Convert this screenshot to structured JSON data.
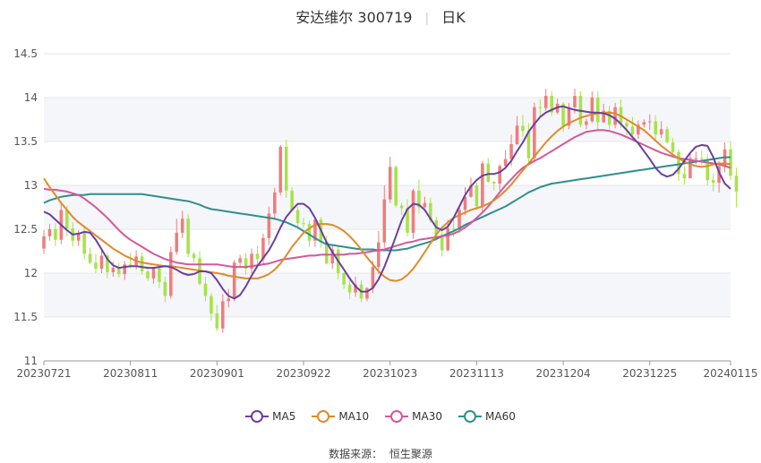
{
  "header": {
    "name_code": "安达维尔 300719",
    "period": "日K"
  },
  "source": {
    "label": "数据来源：",
    "value": "恒生聚源"
  },
  "chart_data": {
    "type": "candlestick",
    "title": "安达维尔 300719 日K",
    "ylim": [
      11,
      14.5
    ],
    "yticks": [
      11,
      11.5,
      12,
      12.5,
      13,
      13.5,
      14,
      14.5
    ],
    "xticks": [
      "20230721",
      "20230811",
      "20230901",
      "20230922",
      "20231023",
      "20231113",
      "20231204",
      "20231225",
      "20240115"
    ],
    "n": 120,
    "x_tick_indices": [
      0,
      15,
      30,
      45,
      60,
      75,
      90,
      105,
      119
    ],
    "colors": {
      "up": "#f07c7c",
      "down": "#a6e34a",
      "grid": "#e6e6e6",
      "band": "#f5f6fa",
      "axis": "#999999"
    },
    "candles": [
      [
        12.28,
        12.42,
        12.49,
        12.22
      ],
      [
        12.42,
        12.5,
        12.56,
        12.37
      ],
      [
        12.5,
        12.38,
        12.57,
        12.31
      ],
      [
        12.38,
        12.72,
        12.79,
        12.33
      ],
      [
        12.72,
        12.51,
        12.77,
        12.42
      ],
      [
        12.51,
        12.37,
        12.58,
        12.3
      ],
      [
        12.37,
        12.46,
        12.49,
        12.31
      ],
      [
        12.46,
        12.22,
        12.53,
        12.16
      ],
      [
        12.22,
        12.12,
        12.29,
        12.1
      ],
      [
        12.12,
        12.05,
        12.22,
        12.0
      ],
      [
        12.05,
        12.2,
        12.27,
        12.0
      ],
      [
        12.2,
        12.01,
        12.23,
        11.94
      ],
      [
        12.01,
        12.06,
        12.13,
        11.96
      ],
      [
        12.06,
        11.99,
        12.12,
        11.95
      ],
      [
        11.99,
        12.1,
        12.14,
        11.92
      ],
      [
        12.1,
        12.09,
        12.23,
        12.05
      ],
      [
        12.09,
        12.19,
        12.26,
        12.04
      ],
      [
        12.19,
        12.02,
        12.24,
        11.98
      ],
      [
        12.02,
        11.94,
        12.08,
        11.91
      ],
      [
        11.94,
        12.06,
        12.07,
        11.88
      ],
      [
        12.06,
        11.9,
        12.07,
        11.83
      ],
      [
        11.9,
        11.74,
        11.96,
        11.67
      ],
      [
        11.74,
        12.24,
        12.3,
        11.71
      ],
      [
        12.24,
        12.46,
        12.62,
        12.21
      ],
      [
        12.46,
        12.62,
        12.71,
        12.4
      ],
      [
        12.62,
        12.22,
        12.67,
        12.18
      ],
      [
        12.22,
        12.17,
        12.24,
        12.12
      ],
      [
        12.17,
        11.88,
        12.25,
        11.86
      ],
      [
        11.88,
        11.74,
        11.96,
        11.68
      ],
      [
        11.74,
        11.54,
        11.77,
        11.46
      ],
      [
        11.54,
        11.37,
        11.64,
        11.34
      ],
      [
        11.37,
        11.68,
        11.76,
        11.32
      ],
      [
        11.68,
        11.71,
        11.82,
        11.61
      ],
      [
        11.71,
        12.12,
        12.15,
        11.68
      ],
      [
        12.12,
        12.17,
        12.21,
        12.07
      ],
      [
        12.17,
        12.05,
        12.23,
        11.98
      ],
      [
        12.05,
        12.22,
        12.28,
        12.0
      ],
      [
        12.22,
        12.16,
        12.31,
        12.1
      ],
      [
        12.16,
        12.4,
        12.45,
        12.09
      ],
      [
        12.4,
        12.68,
        12.76,
        12.32
      ],
      [
        12.68,
        12.92,
        12.97,
        12.61
      ],
      [
        12.92,
        13.44,
        13.46,
        12.89
      ],
      [
        13.44,
        12.94,
        13.52,
        12.86
      ],
      [
        12.94,
        12.72,
        12.98,
        12.71
      ],
      [
        12.72,
        12.57,
        12.76,
        12.53
      ],
      [
        12.57,
        12.56,
        12.63,
        12.52
      ],
      [
        12.56,
        12.37,
        12.6,
        12.3
      ],
      [
        12.37,
        12.61,
        12.63,
        12.3
      ],
      [
        12.61,
        12.36,
        12.64,
        12.29
      ],
      [
        12.36,
        12.11,
        12.43,
        12.1
      ],
      [
        12.11,
        12.27,
        12.33,
        12.05
      ],
      [
        12.27,
        12.0,
        12.31,
        11.93
      ],
      [
        12.0,
        11.87,
        12.01,
        11.82
      ],
      [
        11.87,
        11.78,
        11.92,
        11.7
      ],
      [
        11.78,
        11.87,
        11.96,
        11.73
      ],
      [
        11.87,
        11.71,
        11.92,
        11.67
      ],
      [
        11.71,
        11.83,
        11.84,
        11.68
      ],
      [
        11.83,
        12.07,
        12.14,
        11.77
      ],
      [
        12.07,
        12.35,
        12.48,
        11.99
      ],
      [
        12.35,
        12.84,
        13.0,
        12.29
      ],
      [
        12.84,
        13.21,
        13.33,
        12.8
      ],
      [
        13.21,
        12.77,
        13.23,
        12.75
      ],
      [
        12.77,
        12.74,
        12.8,
        12.66
      ],
      [
        12.74,
        12.46,
        12.84,
        12.42
      ],
      [
        12.46,
        12.94,
        12.96,
        12.39
      ],
      [
        12.94,
        12.75,
        13.07,
        12.68
      ],
      [
        12.75,
        12.8,
        12.87,
        12.74
      ],
      [
        12.8,
        12.6,
        12.86,
        12.57
      ],
      [
        12.6,
        12.44,
        12.64,
        12.37
      ],
      [
        12.44,
        12.26,
        12.53,
        12.19
      ],
      [
        12.26,
        12.51,
        12.61,
        12.25
      ],
      [
        12.51,
        12.5,
        12.62,
        12.41
      ],
      [
        12.5,
        12.72,
        12.77,
        12.46
      ],
      [
        12.72,
        12.87,
        12.98,
        12.66
      ],
      [
        12.87,
        13.0,
        13.09,
        12.86
      ],
      [
        13.0,
        12.76,
        13.03,
        12.72
      ],
      [
        12.76,
        13.25,
        13.28,
        12.69
      ],
      [
        13.25,
        13.04,
        13.31,
        13.03
      ],
      [
        13.04,
        13.02,
        13.05,
        12.94
      ],
      [
        13.02,
        13.22,
        13.24,
        12.94
      ],
      [
        13.22,
        13.3,
        13.4,
        13.19
      ],
      [
        13.3,
        13.47,
        13.58,
        13.22
      ],
      [
        13.47,
        13.68,
        13.79,
        13.46
      ],
      [
        13.68,
        13.62,
        13.8,
        13.55
      ],
      [
        13.62,
        13.31,
        13.71,
        13.23
      ],
      [
        13.31,
        13.89,
        13.94,
        13.26
      ],
      [
        13.89,
        13.88,
        13.98,
        13.79
      ],
      [
        13.88,
        14.02,
        14.1,
        13.85
      ],
      [
        14.02,
        13.83,
        14.07,
        13.79
      ],
      [
        13.83,
        13.93,
        13.99,
        13.81
      ],
      [
        13.93,
        13.68,
        13.95,
        13.61
      ],
      [
        13.68,
        13.89,
        13.94,
        13.64
      ],
      [
        13.89,
        14.02,
        14.1,
        13.82
      ],
      [
        14.02,
        13.69,
        14.07,
        13.66
      ],
      [
        13.69,
        13.73,
        13.76,
        13.64
      ],
      [
        13.73,
        14.0,
        14.07,
        13.71
      ],
      [
        14.0,
        13.72,
        14.07,
        13.64
      ],
      [
        13.72,
        13.85,
        13.93,
        13.71
      ],
      [
        13.85,
        13.69,
        13.91,
        13.64
      ],
      [
        13.69,
        13.89,
        13.94,
        13.65
      ],
      [
        13.89,
        13.71,
        13.98,
        13.65
      ],
      [
        13.71,
        13.67,
        13.76,
        13.57
      ],
      [
        13.67,
        13.58,
        13.78,
        13.54
      ],
      [
        13.58,
        13.69,
        13.74,
        13.53
      ],
      [
        13.69,
        13.72,
        13.75,
        13.66
      ],
      [
        13.72,
        13.73,
        13.81,
        13.63
      ],
      [
        13.73,
        13.58,
        13.8,
        13.52
      ],
      [
        13.58,
        13.64,
        13.73,
        13.54
      ],
      [
        13.64,
        13.49,
        13.67,
        13.48
      ],
      [
        13.49,
        13.38,
        13.54,
        13.33
      ],
      [
        13.38,
        13.13,
        13.41,
        13.05
      ],
      [
        13.13,
        13.08,
        13.22,
        13.01
      ],
      [
        13.08,
        13.31,
        13.37,
        13.08
      ],
      [
        13.31,
        13.31,
        13.39,
        13.24
      ],
      [
        13.31,
        13.3,
        13.4,
        13.23
      ],
      [
        13.3,
        13.06,
        13.36,
        13.0
      ],
      [
        13.06,
        13.03,
        13.13,
        12.93
      ],
      [
        13.03,
        13.22,
        13.28,
        12.92
      ],
      [
        13.22,
        13.41,
        13.49,
        13.15
      ],
      [
        13.41,
        13.11,
        13.5,
        13.06
      ],
      [
        13.11,
        12.93,
        13.2,
        12.75
      ]
    ],
    "ma5": [
      12.7,
      12.67,
      12.61,
      12.55,
      12.49,
      12.44,
      12.45,
      12.47,
      12.46,
      12.38,
      12.27,
      12.16,
      12.09,
      12.06,
      12.07,
      12.08,
      12.08,
      12.07,
      12.06,
      12.06,
      12.07,
      12.08,
      12.07,
      12.04,
      12.0,
      11.98,
      11.99,
      12.02,
      12.02,
      12.0,
      11.92,
      11.82,
      11.74,
      11.71,
      11.75,
      11.85,
      11.97,
      12.08,
      12.17,
      12.26,
      12.38,
      12.52,
      12.64,
      12.72,
      12.79,
      12.79,
      12.74,
      12.63,
      12.49,
      12.35,
      12.24,
      12.14,
      12.04,
      11.94,
      11.85,
      11.79,
      11.79,
      11.83,
      11.93,
      12.07,
      12.24,
      12.42,
      12.6,
      12.73,
      12.79,
      12.78,
      12.72,
      12.62,
      12.52,
      12.49,
      12.53,
      12.63,
      12.76,
      12.89,
      12.99,
      13.06,
      13.11,
      13.13,
      13.13,
      13.15,
      13.2,
      13.28,
      13.39,
      13.49,
      13.61,
      13.7,
      13.78,
      13.83,
      13.86,
      13.89,
      13.9,
      13.88,
      13.86,
      13.85,
      13.84,
      13.83,
      13.83,
      13.82,
      13.8,
      13.76,
      13.7,
      13.63,
      13.55,
      13.48,
      13.39,
      13.3,
      13.2,
      13.13,
      13.1,
      13.12,
      13.19,
      13.28,
      13.37,
      13.44,
      13.46,
      13.45,
      13.32,
      13.15,
      13.02,
      12.96
    ],
    "ma10": [
      13.08,
      12.98,
      12.89,
      12.8,
      12.72,
      12.64,
      12.58,
      12.53,
      12.48,
      12.43,
      12.38,
      12.33,
      12.28,
      12.24,
      12.2,
      12.17,
      12.14,
      12.12,
      12.11,
      12.1,
      12.09,
      12.08,
      12.08,
      12.07,
      12.06,
      12.05,
      12.04,
      12.03,
      12.02,
      12.01,
      12.0,
      11.99,
      11.97,
      11.96,
      11.95,
      11.94,
      11.94,
      11.94,
      11.96,
      11.99,
      12.04,
      12.11,
      12.2,
      12.3,
      12.38,
      12.46,
      12.51,
      12.55,
      12.56,
      12.56,
      12.55,
      12.52,
      12.48,
      12.42,
      12.35,
      12.27,
      12.18,
      12.1,
      12.02,
      11.96,
      11.92,
      11.91,
      11.93,
      11.98,
      12.05,
      12.14,
      12.24,
      12.34,
      12.44,
      12.52,
      12.58,
      12.63,
      12.66,
      12.69,
      12.72,
      12.74,
      12.76,
      12.79,
      12.83,
      12.88,
      12.94,
      13.01,
      13.09,
      13.17,
      13.25,
      13.33,
      13.41,
      13.49,
      13.56,
      13.62,
      13.67,
      13.71,
      13.74,
      13.77,
      13.79,
      13.81,
      13.82,
      13.83,
      13.83,
      13.82,
      13.79,
      13.75,
      13.71,
      13.67,
      13.63,
      13.57,
      13.51,
      13.45,
      13.4,
      13.35,
      13.31,
      13.27,
      13.24,
      13.22,
      13.21,
      13.22,
      13.24,
      13.25,
      13.25,
      13.24
    ],
    "ma30": [
      12.96,
      12.95,
      12.95,
      12.94,
      12.93,
      12.91,
      12.89,
      12.85,
      12.8,
      12.75,
      12.69,
      12.63,
      12.56,
      12.49,
      12.43,
      12.38,
      12.34,
      12.3,
      12.26,
      12.22,
      12.19,
      12.16,
      12.14,
      12.12,
      12.11,
      12.1,
      12.1,
      12.1,
      12.1,
      12.1,
      12.1,
      12.09,
      12.08,
      12.07,
      12.07,
      12.07,
      12.08,
      12.09,
      12.1,
      12.11,
      12.13,
      12.15,
      12.16,
      12.17,
      12.18,
      12.19,
      12.2,
      12.2,
      12.21,
      12.21,
      12.21,
      12.21,
      12.21,
      12.22,
      12.22,
      12.23,
      12.24,
      12.25,
      12.26,
      12.27,
      12.29,
      12.31,
      12.33,
      12.35,
      12.36,
      12.38,
      12.39,
      12.4,
      12.41,
      12.42,
      12.43,
      12.45,
      12.48,
      12.52,
      12.57,
      12.63,
      12.69,
      12.76,
      12.84,
      12.92,
      13.0,
      13.07,
      13.14,
      13.2,
      13.24,
      13.28,
      13.31,
      13.35,
      13.39,
      13.43,
      13.47,
      13.51,
      13.55,
      13.58,
      13.61,
      13.62,
      13.63,
      13.63,
      13.62,
      13.6,
      13.58,
      13.55,
      13.52,
      13.49,
      13.46,
      13.43,
      13.4,
      13.37,
      13.35,
      13.33,
      13.31,
      13.3,
      13.29,
      13.28,
      13.27,
      13.26,
      13.25,
      13.24,
      13.22,
      13.2
    ],
    "ma60": [
      12.8,
      12.83,
      12.85,
      12.87,
      12.88,
      12.89,
      12.89,
      12.89,
      12.9,
      12.9,
      12.9,
      12.9,
      12.9,
      12.9,
      12.9,
      12.9,
      12.9,
      12.9,
      12.89,
      12.88,
      12.87,
      12.86,
      12.85,
      12.84,
      12.83,
      12.82,
      12.8,
      12.78,
      12.75,
      12.73,
      12.72,
      12.71,
      12.7,
      12.69,
      12.68,
      12.67,
      12.66,
      12.65,
      12.64,
      12.63,
      12.62,
      12.6,
      12.58,
      12.55,
      12.52,
      12.48,
      12.44,
      12.4,
      12.36,
      12.33,
      12.32,
      12.31,
      12.3,
      12.29,
      12.28,
      12.27,
      12.27,
      12.27,
      12.26,
      12.26,
      12.26,
      12.26,
      12.27,
      12.28,
      12.3,
      12.32,
      12.34,
      12.36,
      12.39,
      12.42,
      12.45,
      12.48,
      12.51,
      12.55,
      12.58,
      12.61,
      12.64,
      12.67,
      12.7,
      12.73,
      12.76,
      12.8,
      12.84,
      12.88,
      12.92,
      12.95,
      12.98,
      13.0,
      13.02,
      13.03,
      13.04,
      13.05,
      13.06,
      13.07,
      13.08,
      13.09,
      13.1,
      13.11,
      13.12,
      13.13,
      13.14,
      13.15,
      13.16,
      13.17,
      13.18,
      13.19,
      13.2,
      13.21,
      13.22,
      13.23,
      13.24,
      13.25,
      13.26,
      13.27,
      13.28,
      13.29,
      13.3,
      13.31,
      13.32,
      13.32
    ],
    "series": [
      {
        "name": "MA5",
        "color": "#6b3fa0"
      },
      {
        "name": "MA10",
        "color": "#e08a2b"
      },
      {
        "name": "MA30",
        "color": "#d4589a"
      },
      {
        "name": "MA60",
        "color": "#2f8f8f"
      }
    ]
  }
}
